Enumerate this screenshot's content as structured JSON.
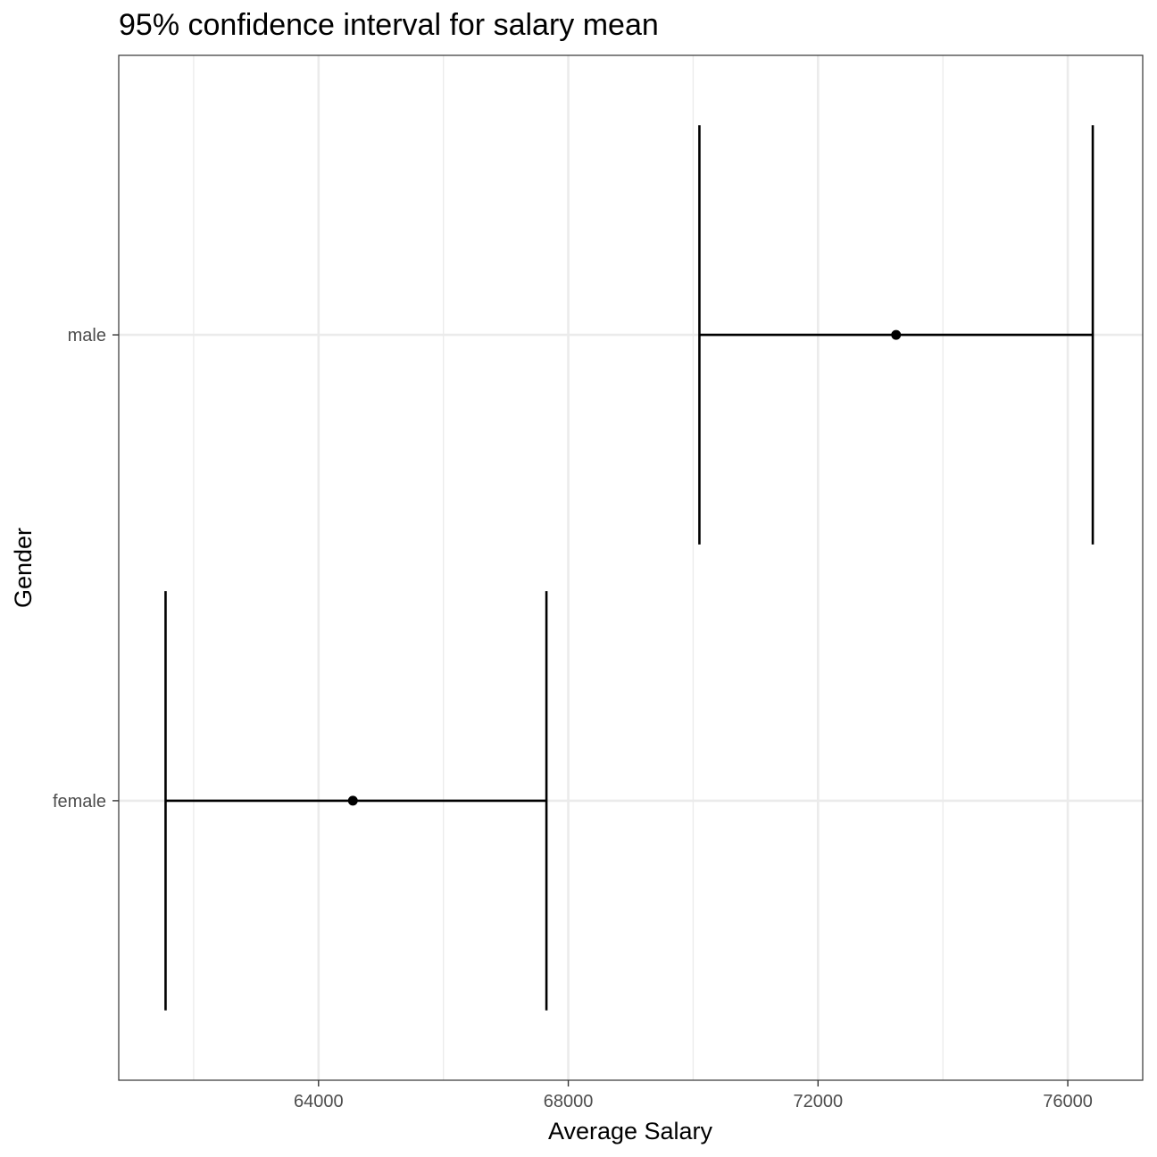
{
  "chart_data": {
    "type": "errorbar",
    "title": "95% confidence interval for salary mean",
    "xlabel": "Average Salary",
    "ylabel": "Gender",
    "xlim": [
      60800,
      77200
    ],
    "x_ticks": [
      64000,
      68000,
      72000,
      76000
    ],
    "x_tick_labels": [
      "64000",
      "68000",
      "72000",
      "76000"
    ],
    "x_minor_ticks": [
      62000,
      66000,
      70000,
      74000
    ],
    "categories": [
      "female",
      "male"
    ],
    "series": [
      {
        "category": "female",
        "mean": 64550,
        "lower": 61550,
        "upper": 67650
      },
      {
        "category": "male",
        "mean": 73250,
        "lower": 70100,
        "upper": 76400
      }
    ],
    "grid": true,
    "colors": {
      "mark": "#000000",
      "grid": "#ebebeb",
      "border": "#333333",
      "tick_text": "#4d4d4d"
    }
  }
}
